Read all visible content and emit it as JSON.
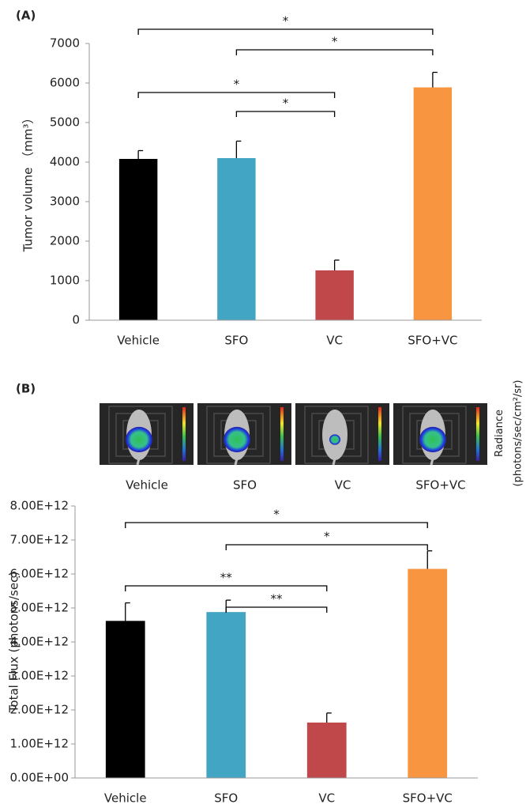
{
  "chart_data": [
    {
      "type": "bar",
      "panel_label": "(A)",
      "y_label": "Tumor volume （mm³）",
      "categories": [
        "Vehicle",
        "SFO",
        "VC",
        "SFO+VC"
      ],
      "values": [
        4080,
        4100,
        1260,
        5890
      ],
      "errors": [
        210,
        430,
        260,
        380
      ],
      "colors": [
        "#000000",
        "#42a5c4",
        "#c0484a",
        "#f79540"
      ],
      "ylim": [
        0,
        7000
      ],
      "yticks": [
        0,
        1000,
        2000,
        3000,
        4000,
        5000,
        6000,
        7000
      ],
      "annotations": [
        {
          "between": [
            "Vehicle",
            "SFO+VC"
          ],
          "text": "*"
        },
        {
          "between": [
            "SFO",
            "SFO+VC"
          ],
          "text": "*"
        },
        {
          "between": [
            "Vehicle",
            "VC"
          ],
          "text": "*"
        },
        {
          "between": [
            "SFO",
            "VC"
          ],
          "text": "*"
        }
      ]
    },
    {
      "type": "bar",
      "panel_label": "(B)",
      "y_label": "Total Flux (photons/sec)",
      "categories": [
        "Vehicle",
        "SFO",
        "VC",
        "SFO+VC"
      ],
      "values": [
        4620000000000,
        4880000000000,
        1630000000000,
        6150000000000
      ],
      "errors": [
        530000000000,
        350000000000,
        280000000000,
        530000000000
      ],
      "colors": [
        "#000000",
        "#42a5c4",
        "#c0484a",
        "#f79540"
      ],
      "ylim": [
        0,
        8000000000000
      ],
      "yticks": [
        {
          "value": 0,
          "label": "0.00E+00"
        },
        {
          "value": 1000000000000,
          "label": "1.00E+12"
        },
        {
          "value": 2000000000000,
          "label": "2.00E+12"
        },
        {
          "value": 3000000000000,
          "label": "3.00E+12"
        },
        {
          "value": 4000000000000,
          "label": "4.00E+12"
        },
        {
          "value": 5000000000000,
          "label": "5.00E+12"
        },
        {
          "value": 6000000000000,
          "label": "6.00E+12"
        },
        {
          "value": 7000000000000,
          "label": "7.00E+12"
        },
        {
          "value": 8000000000000,
          "label": "8.00E+12"
        }
      ],
      "annotations": [
        {
          "between": [
            "Vehicle",
            "SFO+VC"
          ],
          "text": "*"
        },
        {
          "between": [
            "SFO",
            "SFO+VC"
          ],
          "text": "*"
        },
        {
          "between": [
            "Vehicle",
            "VC"
          ],
          "text": "**"
        },
        {
          "between": [
            "SFO",
            "VC"
          ],
          "text": "**"
        }
      ]
    }
  ],
  "imaging": {
    "captions": [
      "Vehicle",
      "SFO",
      "VC",
      "SFO+VC"
    ],
    "colorbar_label": [
      "Radiance",
      "(photons/sec/cm²/sr)"
    ]
  }
}
